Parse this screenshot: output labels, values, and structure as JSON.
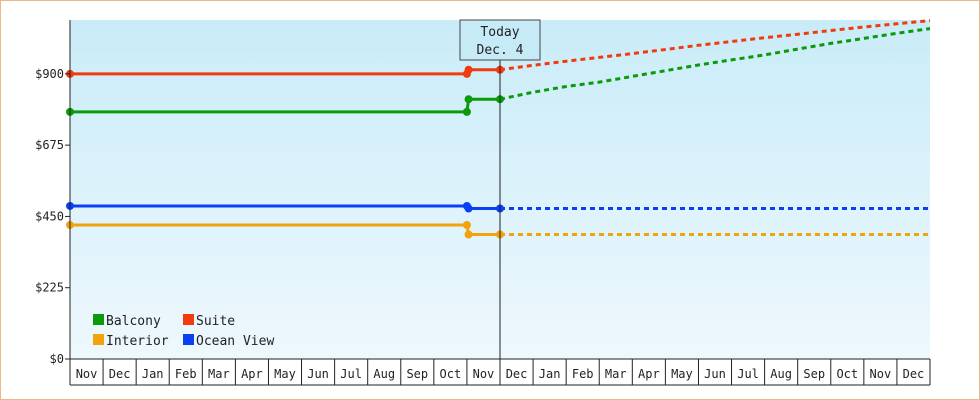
{
  "chart_data": {
    "type": "line",
    "title": "",
    "xlabel": "",
    "ylabel": "",
    "x_tick_labels": [
      "Nov",
      "Dec",
      "Jan",
      "Feb",
      "Mar",
      "Apr",
      "May",
      "Jun",
      "Jul",
      "Aug",
      "Sep",
      "Oct",
      "Nov",
      "Dec",
      "Jan",
      "Feb",
      "Mar",
      "Apr",
      "May",
      "Jun",
      "Jul",
      "Aug",
      "Sep",
      "Oct",
      "Nov",
      "Dec"
    ],
    "y_ticks": [
      0,
      225,
      450,
      675,
      900
    ],
    "y_tick_labels": [
      "$0",
      "$225",
      "$450",
      "$675",
      "$900"
    ],
    "ylim": [
      0,
      1070
    ],
    "xlim": [
      0,
      26
    ],
    "grid": false,
    "legend_position": "bottom-left",
    "today_marker": {
      "line1": "Today",
      "line2": "Dec. 4",
      "x": 13.0
    },
    "series": [
      {
        "name": "Balcony",
        "color": "#0a9a0a",
        "historical": [
          [
            0,
            780
          ],
          [
            12.0,
            780
          ],
          [
            12.05,
            820
          ],
          [
            13.0,
            820
          ]
        ],
        "points": [
          [
            0,
            780
          ],
          [
            12.0,
            780
          ],
          [
            12.05,
            820
          ],
          [
            13.0,
            820
          ]
        ],
        "forecast": [
          [
            13.0,
            820
          ],
          [
            14,
            842
          ],
          [
            15,
            860
          ],
          [
            16,
            874
          ],
          [
            17,
            892
          ],
          [
            18,
            910
          ],
          [
            19,
            928
          ],
          [
            20,
            944
          ],
          [
            21,
            960
          ],
          [
            22,
            978
          ],
          [
            23,
            996
          ],
          [
            24,
            1012
          ],
          [
            25,
            1028
          ],
          [
            26,
            1043
          ]
        ]
      },
      {
        "name": "Suite",
        "color": "#f23a0f",
        "historical": [
          [
            0,
            900
          ],
          [
            12.0,
            900
          ],
          [
            12.05,
            913
          ],
          [
            13.0,
            913
          ]
        ],
        "points": [
          [
            0,
            900
          ],
          [
            12.0,
            900
          ],
          [
            12.05,
            913
          ],
          [
            13.0,
            913
          ]
        ],
        "forecast": [
          [
            13.0,
            913
          ],
          [
            14,
            927
          ],
          [
            15,
            940
          ],
          [
            16,
            952
          ],
          [
            17,
            964
          ],
          [
            18,
            977
          ],
          [
            19,
            990
          ],
          [
            20,
            1002
          ],
          [
            21,
            1014
          ],
          [
            22,
            1025
          ],
          [
            23,
            1037
          ],
          [
            24,
            1048
          ],
          [
            25,
            1058
          ],
          [
            26,
            1068
          ]
        ]
      },
      {
        "name": "Interior",
        "color": "#f2a20a",
        "historical": [
          [
            0,
            423
          ],
          [
            12.0,
            423
          ],
          [
            12.05,
            393
          ],
          [
            13.0,
            393
          ]
        ],
        "points": [
          [
            0,
            423
          ],
          [
            12.0,
            423
          ],
          [
            12.05,
            393
          ],
          [
            13.0,
            393
          ]
        ],
        "forecast": [
          [
            13.0,
            393
          ],
          [
            26,
            393
          ]
        ]
      },
      {
        "name": "Ocean View",
        "color": "#0a3ff2",
        "historical": [
          [
            0,
            483
          ],
          [
            12.0,
            483
          ],
          [
            12.05,
            475
          ],
          [
            13.0,
            475
          ]
        ],
        "points": [
          [
            0,
            483
          ],
          [
            12.0,
            483
          ],
          [
            12.05,
            475
          ],
          [
            13.0,
            475
          ]
        ],
        "forecast": [
          [
            13.0,
            475
          ],
          [
            26,
            475
          ]
        ]
      }
    ],
    "legend_order": [
      "Balcony",
      "Suite",
      "Interior",
      "Ocean View"
    ]
  }
}
